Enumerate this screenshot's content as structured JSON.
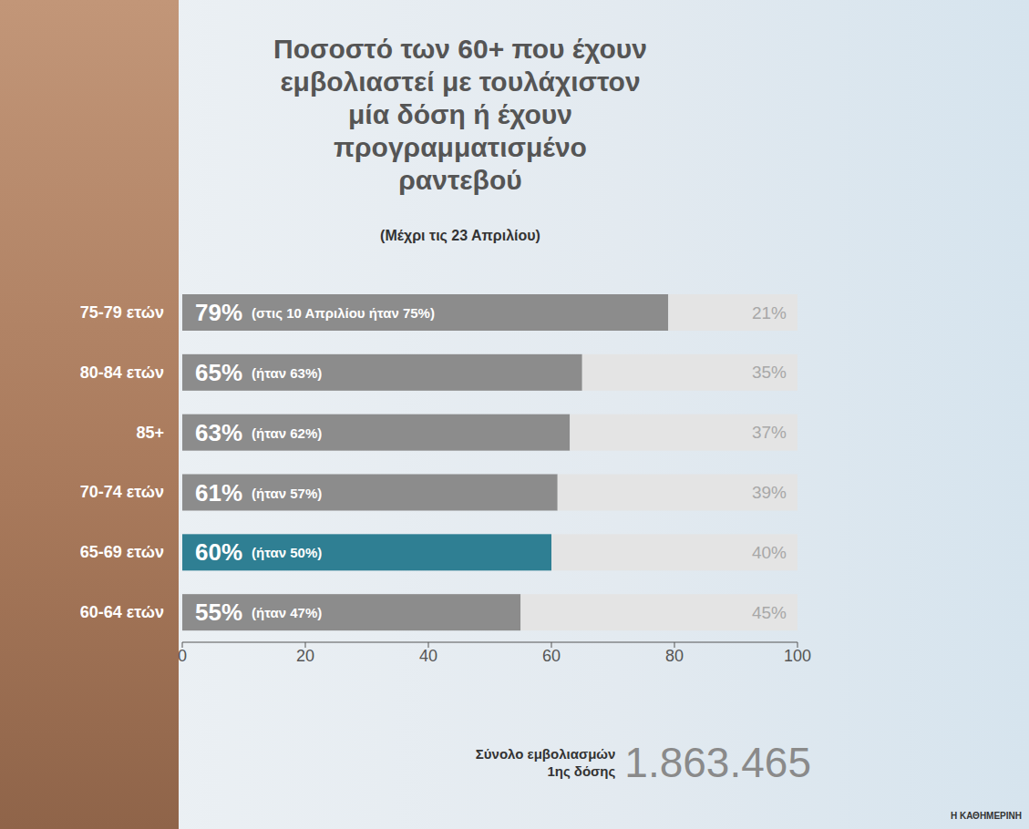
{
  "chart_data": {
    "type": "bar",
    "orientation": "horizontal",
    "stacked": true,
    "title": "Ποσοστό των 60+ που έχουν εμβολιαστεί με τουλάχιστον μία δόση ή έχουν προγραμματισμένο ραντεβού",
    "subtitle": "(Μέχρι τις 23 Απριλίου)",
    "categories": [
      "75-79 ετών",
      "80-84 ετών",
      "85+",
      "70-74 ετών",
      "65-69 ετών",
      "60-64 ετών"
    ],
    "series": [
      {
        "values": [
          79,
          65,
          63,
          61,
          60,
          55
        ],
        "value_labels": [
          "79%",
          "65%",
          "63%",
          "61%",
          "60%",
          "55%"
        ],
        "annotations": [
          "(στις 10 Απριλίου ήταν 75%)",
          "(ήταν 63%)",
          "(ήταν 62%)",
          "(ήταν 57%)",
          "(ήταν 50%)",
          "(ήταν 47%)"
        ],
        "colors": [
          "#8c8c8c",
          "#8c8c8c",
          "#8c8c8c",
          "#8c8c8c",
          "#2f7f93",
          "#8c8c8c"
        ]
      },
      {
        "values": [
          21,
          35,
          37,
          39,
          40,
          45
        ],
        "value_labels": [
          "21%",
          "35%",
          "37%",
          "39%",
          "40%",
          "45%"
        ],
        "color": "#e4e4e4"
      }
    ],
    "xlim": [
      0,
      100
    ],
    "xticks": [
      0,
      20,
      40,
      60,
      80,
      100
    ],
    "data_labels": true,
    "grid": false,
    "total_label": "Σύνολο εμβολιασμών 1ης δόσης",
    "total": "1.863.465",
    "source": "Η ΚΑΘΗΜΕΡΙΝΗ"
  }
}
